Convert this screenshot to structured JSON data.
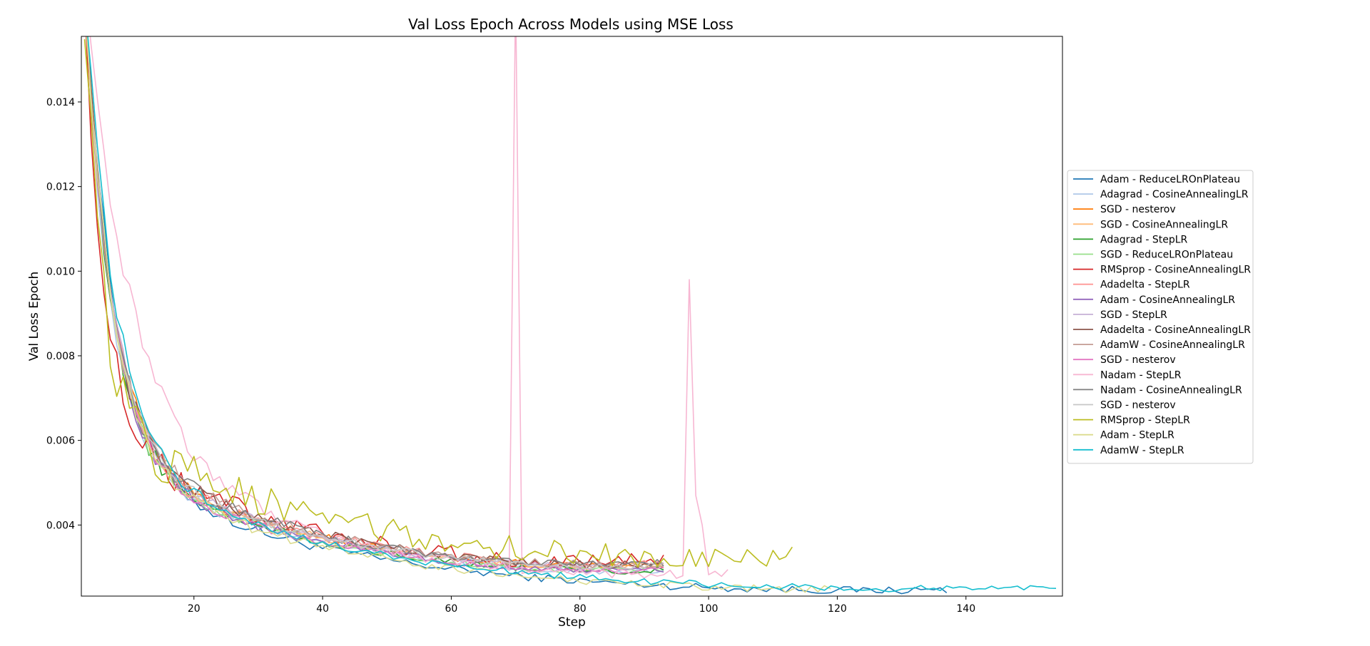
{
  "chart_data": {
    "type": "line",
    "title": "Val Loss Epoch Across Models using MSE Loss",
    "xlabel": "Step",
    "ylabel": "Val Loss Epoch",
    "xlim": [
      2.5,
      155
    ],
    "ylim": [
      0.00232,
      0.01555
    ],
    "xticks": [
      20,
      40,
      60,
      80,
      100,
      120,
      140
    ],
    "yticks": [
      0.004,
      0.006,
      0.008,
      0.01,
      0.012,
      0.014
    ],
    "ytick_labels": [
      "0.004",
      "0.006",
      "0.008",
      "0.010",
      "0.012",
      "0.014"
    ],
    "grid": false,
    "legend_position": "right",
    "series": [
      {
        "name": "Adam - ReduceLROnPlateau",
        "color": "#1f77b4",
        "end": 137,
        "final": 0.00255,
        "start": 0.0166,
        "tau": 4.5,
        "plateau": 0.0056,
        "pscale": 35,
        "base": 0.00232,
        "noise": 9e-05
      },
      {
        "name": "Adagrad - CosineAnnealingLR",
        "color": "#aec7e8",
        "end": 93,
        "final": 0.0031,
        "start": 0.0166,
        "tau": 4.0,
        "plateau": 0.0058,
        "pscale": 32,
        "base": 0.0026,
        "noise": 8e-05
      },
      {
        "name": "SGD - nesterov",
        "color": "#ff7f0e",
        "end": 93,
        "final": 0.0032,
        "start": 0.0166,
        "tau": 4.2,
        "plateau": 0.0059,
        "pscale": 32,
        "base": 0.0027,
        "noise": 8e-05
      },
      {
        "name": "SGD - CosineAnnealingLR",
        "color": "#ffbb78",
        "end": 93,
        "final": 0.0032,
        "start": 0.0166,
        "tau": 4.2,
        "plateau": 0.0059,
        "pscale": 32,
        "base": 0.0027,
        "noise": 8e-05
      },
      {
        "name": "Adagrad - StepLR",
        "color": "#2ca02c",
        "end": 93,
        "final": 0.0031,
        "start": 0.0166,
        "tau": 4.0,
        "plateau": 0.0058,
        "pscale": 32,
        "base": 0.0026,
        "noise": 8e-05
      },
      {
        "name": "SGD - ReduceLROnPlateau",
        "color": "#98df8a",
        "end": 93,
        "final": 0.0031,
        "start": 0.0166,
        "tau": 4.1,
        "plateau": 0.0058,
        "pscale": 32,
        "base": 0.0026,
        "noise": 8e-05
      },
      {
        "name": "RMSprop - CosineAnnealingLR",
        "color": "#d62728",
        "end": 93,
        "final": 0.0034,
        "start": 0.0166,
        "tau": 3.0,
        "plateau": 0.0063,
        "pscale": 30,
        "base": 0.0028,
        "noise": 0.00018
      },
      {
        "name": "Adadelta - StepLR",
        "color": "#ff9896",
        "end": 93,
        "final": 0.0033,
        "start": 0.0166,
        "tau": 4.0,
        "plateau": 0.006,
        "pscale": 32,
        "base": 0.0027,
        "noise": 0.0001
      },
      {
        "name": "Adam - CosineAnnealingLR",
        "color": "#9467bd",
        "end": 93,
        "final": 0.0031,
        "start": 0.0166,
        "tau": 4.2,
        "plateau": 0.0057,
        "pscale": 33,
        "base": 0.0026,
        "noise": 8e-05
      },
      {
        "name": "SGD - StepLR",
        "color": "#c5b0d5",
        "end": 93,
        "final": 0.0032,
        "start": 0.0166,
        "tau": 4.2,
        "plateau": 0.0059,
        "pscale": 32,
        "base": 0.0027,
        "noise": 8e-05
      },
      {
        "name": "Adadelta - CosineAnnealingLR",
        "color": "#8c564b",
        "end": 93,
        "final": 0.0033,
        "start": 0.0166,
        "tau": 4.0,
        "plateau": 0.0061,
        "pscale": 32,
        "base": 0.0027,
        "noise": 0.0001
      },
      {
        "name": "AdamW - CosineAnnealingLR",
        "color": "#c49c94",
        "end": 93,
        "final": 0.0033,
        "start": 0.0166,
        "tau": 4.0,
        "plateau": 0.0061,
        "pscale": 32,
        "base": 0.0027,
        "noise": 0.0001
      },
      {
        "name": "SGD - nesterov",
        "color": "#e377c2",
        "end": 93,
        "final": 0.0031,
        "start": 0.0166,
        "tau": 4.2,
        "plateau": 0.0058,
        "pscale": 32,
        "base": 0.0026,
        "noise": 8e-05
      },
      {
        "name": "Nadam - StepLR",
        "color": "#f7b6d2",
        "end": 103,
        "final": 0.003,
        "start": 0.0166,
        "tau": 7.0,
        "plateau": 0.0068,
        "pscale": 28,
        "base": 0.0026,
        "noise": 0.00012,
        "spikes": [
          [
            70,
            0.0166
          ],
          [
            97,
            0.0098
          ],
          [
            98,
            0.0047
          ],
          [
            99,
            0.004
          ]
        ]
      },
      {
        "name": "Nadam - CosineAnnealingLR",
        "color": "#7f7f7f",
        "end": 93,
        "final": 0.0033,
        "start": 0.0166,
        "tau": 4.0,
        "plateau": 0.0061,
        "pscale": 32,
        "base": 0.0027,
        "noise": 0.0001
      },
      {
        "name": "SGD - nesterov",
        "color": "#c7c7c7",
        "end": 93,
        "final": 0.0032,
        "start": 0.0166,
        "tau": 4.2,
        "plateau": 0.0059,
        "pscale": 32,
        "base": 0.0027,
        "noise": 8e-05
      },
      {
        "name": "RMSprop - StepLR",
        "color": "#bcbd22",
        "end": 113,
        "final": 0.0034,
        "start": 0.0166,
        "tau": 2.6,
        "plateau": 0.0066,
        "pscale": 35,
        "base": 0.0029,
        "noise": 0.00028
      },
      {
        "name": "Adam - StepLR",
        "color": "#dbdb8d",
        "end": 119,
        "final": 0.0025,
        "start": 0.0166,
        "tau": 4.3,
        "plateau": 0.0057,
        "pscale": 34,
        "base": 0.00235,
        "noise": 9e-05
      },
      {
        "name": "AdamW - StepLR",
        "color": "#17becf",
        "end": 154,
        "final": 0.0026,
        "start": 0.0166,
        "tau": 4.8,
        "plateau": 0.0057,
        "pscale": 36,
        "base": 0.00238,
        "noise": 8e-05
      }
    ]
  }
}
